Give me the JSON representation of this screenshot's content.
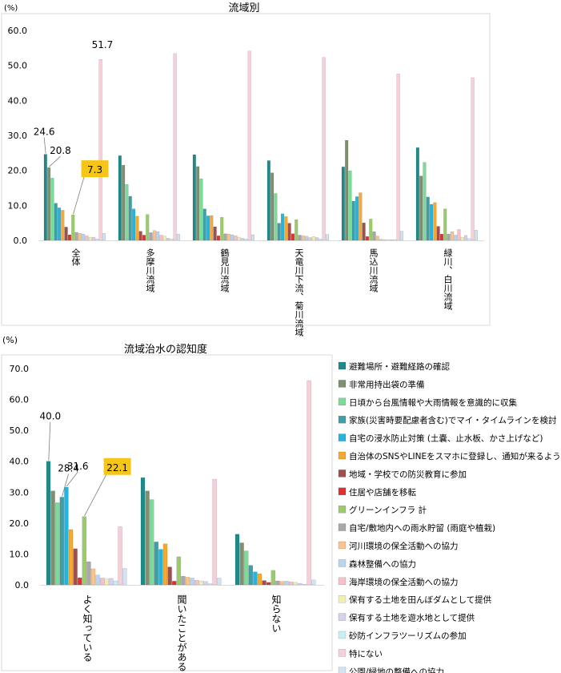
{
  "chart_data": [
    {
      "type": "bar",
      "title": "流域別",
      "unit_label": "(%)",
      "ylim": [
        0,
        60
      ],
      "yticks": [
        "0.0",
        "10.0",
        "20.0",
        "30.0",
        "40.0",
        "50.0",
        "60.0"
      ],
      "grid": false,
      "legend": "shared-right",
      "categories": [
        "全体",
        "多摩川流域",
        "鶴見川流域",
        "天竜川下流、菊川流域",
        "馬込川流域",
        "緑川、白川流域"
      ],
      "series_values": [
        [
          24.6,
          24.2,
          24.5,
          22.8,
          21.0,
          26.5
        ],
        [
          20.8,
          21.5,
          21.1,
          19.3,
          28.6,
          18.4
        ],
        [
          17.8,
          16.0,
          17.6,
          13.4,
          19.9,
          22.3
        ],
        [
          10.6,
          12.6,
          9.0,
          4.9,
          11.2,
          12.4
        ],
        [
          9.3,
          9.0,
          7.0,
          7.6,
          12.5,
          10.3
        ],
        [
          8.6,
          6.9,
          7.1,
          6.8,
          13.6,
          10.8
        ],
        [
          3.8,
          2.6,
          3.9,
          4.9,
          5.0,
          4.0
        ],
        [
          1.6,
          1.5,
          1.3,
          1.9,
          1.1,
          1.8
        ],
        [
          7.3,
          7.4,
          6.6,
          5.9,
          6.1,
          9.0
        ],
        [
          2.3,
          2.2,
          1.9,
          1.5,
          2.5,
          1.8
        ],
        [
          2.0,
          2.8,
          1.8,
          1.3,
          1.2,
          2.5
        ],
        [
          1.8,
          2.5,
          1.6,
          1.2,
          0.3,
          1.5
        ],
        [
          1.3,
          1.5,
          1.3,
          0.8,
          0.2,
          3.1
        ],
        [
          0.9,
          1.2,
          0.9,
          1.1,
          0.2,
          0.9
        ],
        [
          0.9,
          0.6,
          0.6,
          0.8,
          0.2,
          1.4
        ],
        [
          0.4,
          0.4,
          0.4,
          0.4,
          0.2,
          0.5
        ],
        [
          51.7,
          53.4,
          54.1,
          52.3,
          47.6,
          46.5
        ],
        [
          2.0,
          1.8,
          1.6,
          1.7,
          2.6,
          2.9
        ]
      ],
      "value_labels": [
        {
          "series": 0,
          "category": 0,
          "text": "24.6",
          "boxed": false
        },
        {
          "series": 1,
          "category": 0,
          "text": "20.8",
          "boxed": false
        },
        {
          "series": 8,
          "category": 0,
          "text": "7.3",
          "boxed": true
        },
        {
          "series": 16,
          "category": 0,
          "text": "51.7",
          "boxed": false
        }
      ]
    },
    {
      "type": "bar",
      "title": "流域治水の認知度",
      "unit_label": "(%)",
      "ylim": [
        0,
        70
      ],
      "yticks": [
        "0.0",
        "10.0",
        "20.0",
        "30.0",
        "40.0",
        "50.0",
        "60.0",
        "70.0"
      ],
      "grid": false,
      "legend": "right",
      "categories": [
        "よく知っている",
        "聞いたことがある",
        "知らない"
      ],
      "series_values": [
        [
          40.0,
          34.7,
          16.4
        ],
        [
          30.4,
          30.4,
          13.6
        ],
        [
          26.6,
          27.6,
          11.0
        ],
        [
          28.4,
          13.9,
          6.3
        ],
        [
          31.6,
          11.5,
          4.2
        ],
        [
          17.9,
          13.3,
          3.6
        ],
        [
          11.7,
          5.8,
          1.4
        ],
        [
          2.3,
          1.2,
          0.8
        ],
        [
          22.1,
          9.1,
          4.7
        ],
        [
          7.5,
          2.8,
          1.3
        ],
        [
          5.2,
          2.5,
          1.1
        ],
        [
          3.2,
          2.2,
          1.2
        ],
        [
          2.2,
          1.5,
          1.0
        ],
        [
          1.9,
          1.3,
          0.8
        ],
        [
          2.1,
          1.1,
          0.5
        ],
        [
          1.3,
          0.4,
          0.2
        ],
        [
          18.8,
          34.2,
          66.1
        ],
        [
          5.3,
          2.2,
          1.6
        ]
      ],
      "value_labels": [
        {
          "series": 0,
          "category": 0,
          "text": "40.0",
          "boxed": false
        },
        {
          "series": 3,
          "category": 0,
          "text": "28.4",
          "boxed": false
        },
        {
          "series": 4,
          "category": 0,
          "text": "31.6",
          "boxed": false
        },
        {
          "series": 8,
          "category": 0,
          "text": "22.1",
          "boxed": true
        }
      ]
    }
  ],
  "series": [
    {
      "name": "避難場所・避難経路の確認",
      "color": "#1f8a8a"
    },
    {
      "name": "非常用持出袋の準備",
      "color": "#7f8f6f"
    },
    {
      "name": "日頃から台風情報や大雨情報を意識的に収集",
      "color": "#77dd99"
    },
    {
      "name": "家族(災害時要配慮者含む)でマイ・タイムラインを検討",
      "color": "#3d9fa8"
    },
    {
      "name": "自宅の浸水防止対策 (土嚢、止水板、かさ上げなど)",
      "color": "#22b5e0"
    },
    {
      "name": "自治体のSNSやLINEをスマホに登録し、通知が来るようにした",
      "color": "#f5a832"
    },
    {
      "name": "地域・学校での防災教育に参加",
      "color": "#a04f4f"
    },
    {
      "name": "住居や店舗を移転",
      "color": "#e03030"
    },
    {
      "name": "グリーンインフラ 計",
      "color": "#9acd6a"
    },
    {
      "name": "自宅/敷地内への雨水貯留 (雨庭や植栽)",
      "color": "#a8a8a8"
    },
    {
      "name": "河川環境の保全活動への協力",
      "color": "#f9c48e"
    },
    {
      "name": "森林整備への協力",
      "color": "#b8d4f0"
    },
    {
      "name": "海岸環境の保全活動への協力",
      "color": "#f8c0c8"
    },
    {
      "name": "保有する土地を田んぼダムとして提供",
      "color": "#eef0b0"
    },
    {
      "name": "保有する土地を遊水地として提供",
      "color": "#d8d0ee"
    },
    {
      "name": "砂防インフラツーリズムの参加",
      "color": "#c8f0f4"
    },
    {
      "name": "特にない",
      "color": "#f6cfd8"
    },
    {
      "name": "公園/緑地の整備への協力",
      "color": "#cfe3f3"
    }
  ],
  "label_highlight_color": "#f5c518"
}
